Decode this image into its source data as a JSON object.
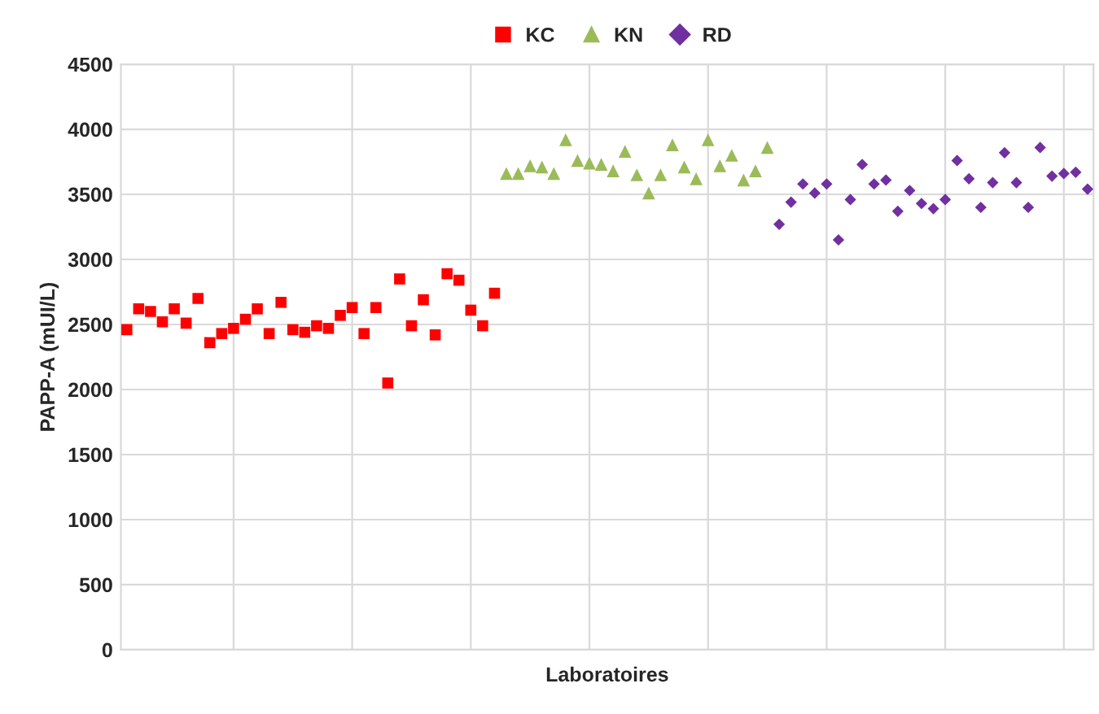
{
  "chart_data": {
    "type": "scatter",
    "xlabel": "Laboratoires",
    "ylabel": "PAPP-A (mUI/L)",
    "categories": [
      null,
      null,
      null,
      null,
      null,
      null,
      null,
      null,
      null,
      null,
      null,
      null,
      null,
      null,
      null,
      null,
      null,
      null,
      null,
      null,
      null,
      null,
      null,
      null,
      null,
      null,
      null,
      null,
      null,
      null,
      null,
      null,
      null,
      null,
      null,
      null,
      null,
      null,
      null,
      null,
      null,
      null,
      null,
      null,
      null,
      null,
      null,
      null,
      null,
      null,
      null,
      null,
      null,
      null,
      null,
      null,
      null,
      null,
      null,
      null,
      null,
      null,
      null,
      null,
      null,
      null,
      null,
      null,
      null,
      null,
      null,
      null,
      null,
      null,
      null,
      null,
      null,
      null,
      null,
      null,
      null,
      null
    ],
    "ylim": [
      0,
      4500
    ],
    "yticks": [
      0,
      500,
      1000,
      1500,
      2000,
      2500,
      3000,
      3500,
      4000,
      4500
    ],
    "grid": true,
    "legend": "top",
    "series": [
      {
        "name": "KC",
        "color": "#ff0000",
        "marker": "square",
        "values": [
          2460,
          2620,
          2600,
          2520,
          2620,
          2510,
          2700,
          2360,
          2430,
          2470,
          2540,
          2620,
          2430,
          2670,
          2460,
          2440,
          2490,
          2470,
          2570,
          2630,
          2430,
          2630,
          2050,
          2850,
          2490,
          2690,
          2420,
          2890,
          2840,
          2610,
          2490,
          2740,
          null,
          null,
          null,
          null,
          null,
          null,
          null,
          null,
          null,
          null,
          null,
          null,
          null,
          null,
          null,
          null,
          null,
          null,
          null,
          null,
          null,
          null,
          null,
          null,
          null,
          null,
          null,
          null,
          null,
          null,
          null,
          null,
          null,
          null,
          null,
          null,
          null,
          null,
          null,
          null,
          null,
          null,
          null,
          null,
          null,
          null,
          null,
          null,
          null,
          null
        ]
      },
      {
        "name": "KN",
        "color": "#9bbb59",
        "marker": "triangle",
        "values": [
          null,
          null,
          null,
          null,
          null,
          null,
          null,
          null,
          null,
          null,
          null,
          null,
          null,
          null,
          null,
          null,
          null,
          null,
          null,
          null,
          null,
          null,
          null,
          null,
          null,
          null,
          null,
          null,
          null,
          null,
          null,
          null,
          3660,
          3660,
          3720,
          3710,
          3660,
          3920,
          3760,
          3740,
          3730,
          3680,
          3830,
          3650,
          3510,
          3650,
          3880,
          3710,
          3620,
          3920,
          3720,
          3800,
          3610,
          3680,
          3860,
          null,
          null,
          null,
          null,
          null,
          null,
          null,
          null,
          null,
          null,
          null,
          null,
          null,
          null,
          null,
          null,
          null,
          null,
          null,
          null,
          null,
          null,
          null,
          null,
          null,
          null,
          null
        ]
      },
      {
        "name": "RD",
        "color": "#7030a0",
        "marker": "diamond",
        "values": [
          null,
          null,
          null,
          null,
          null,
          null,
          null,
          null,
          null,
          null,
          null,
          null,
          null,
          null,
          null,
          null,
          null,
          null,
          null,
          null,
          null,
          null,
          null,
          null,
          null,
          null,
          null,
          null,
          null,
          null,
          null,
          null,
          null,
          null,
          null,
          null,
          null,
          null,
          null,
          null,
          null,
          null,
          null,
          null,
          null,
          null,
          null,
          null,
          null,
          null,
          null,
          null,
          null,
          null,
          null,
          3270,
          3440,
          3580,
          3510,
          3580,
          3150,
          3460,
          3730,
          3580,
          3610,
          3370,
          3530,
          3430,
          3390,
          3460,
          3760,
          3620,
          3400,
          3590,
          3820,
          3590,
          3400,
          3860,
          3640,
          3660,
          3670,
          3540
        ]
      }
    ]
  }
}
